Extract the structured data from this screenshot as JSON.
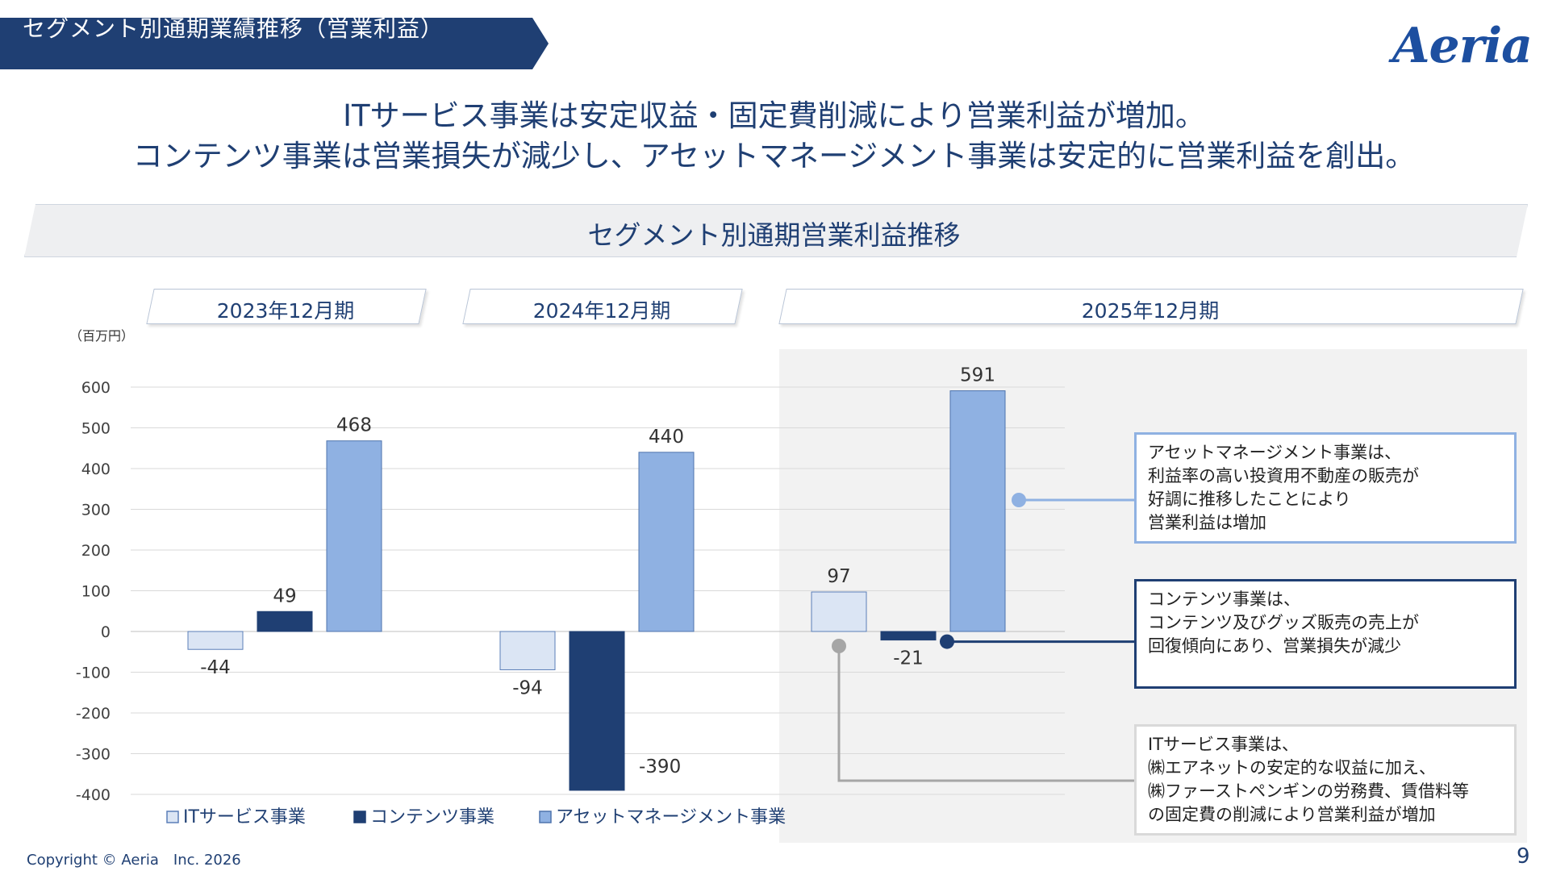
{
  "header": {
    "banner_title": "セグメント別通期業績推移（営業利益）",
    "logo": "Aeria"
  },
  "headline": {
    "line1": "ITサービス事業は安定収益・固定費削減により営業利益が増加。",
    "line2": "コンテンツ事業は営業損失が減少し、アセットマネージメント事業は安定的に営業利益を創出。"
  },
  "section_title": "セグメント別通期営業利益推移",
  "periods": [
    "2023年12月期",
    "2024年12月期",
    "2025年12月期"
  ],
  "unit_label": "（百万円）",
  "colors": {
    "it_service": "#dbe5f4",
    "contents": "#1f3f73",
    "asset_management": "#8fb1e2",
    "title_navy": "#1f3f73",
    "highlight_bg": "#f2f2f2"
  },
  "chart_data": {
    "type": "bar",
    "categories": [
      "2023年12月期",
      "2024年12月期",
      "2025年12月期"
    ],
    "series": [
      {
        "name": "ITサービス事業",
        "values": [
          -44,
          -94,
          97
        ]
      },
      {
        "name": "コンテンツ事業",
        "values": [
          49,
          -390,
          -21
        ]
      },
      {
        "name": "アセットマネージメント事業",
        "values": [
          468,
          440,
          591
        ]
      }
    ],
    "data_labels": [
      [
        "-44",
        "-94",
        "97"
      ],
      [
        "49",
        "-390",
        "-21"
      ],
      [
        "468",
        "440",
        "591"
      ]
    ],
    "ylabel": "（百万円）",
    "ylim": [
      -400,
      600
    ],
    "yticks": [
      600,
      500,
      400,
      300,
      200,
      100,
      0,
      -100,
      -200,
      -300,
      -400
    ],
    "grid": true,
    "legend_position": "bottom-left"
  },
  "callouts": [
    {
      "lines": [
        "アセットマネージメント事業は、",
        "利益率の高い投資用不動産の販売が",
        "好調に推移したことにより",
        "営業利益は増加"
      ]
    },
    {
      "lines": [
        "コンテンツ事業は、",
        "コンテンツ及びグッズ販売の売上が",
        "回復傾向にあり、営業損失が減少"
      ]
    },
    {
      "lines": [
        "ITサービス事業は、",
        "㈱エアネットの安定的な収益に加え、",
        "㈱ファーストペンギンの労務費、賃借料等",
        "の固定費の削減により営業利益が増加"
      ]
    }
  ],
  "footer": {
    "copyright": "Copyright © Aeria　Inc. 2026",
    "page": "9"
  }
}
